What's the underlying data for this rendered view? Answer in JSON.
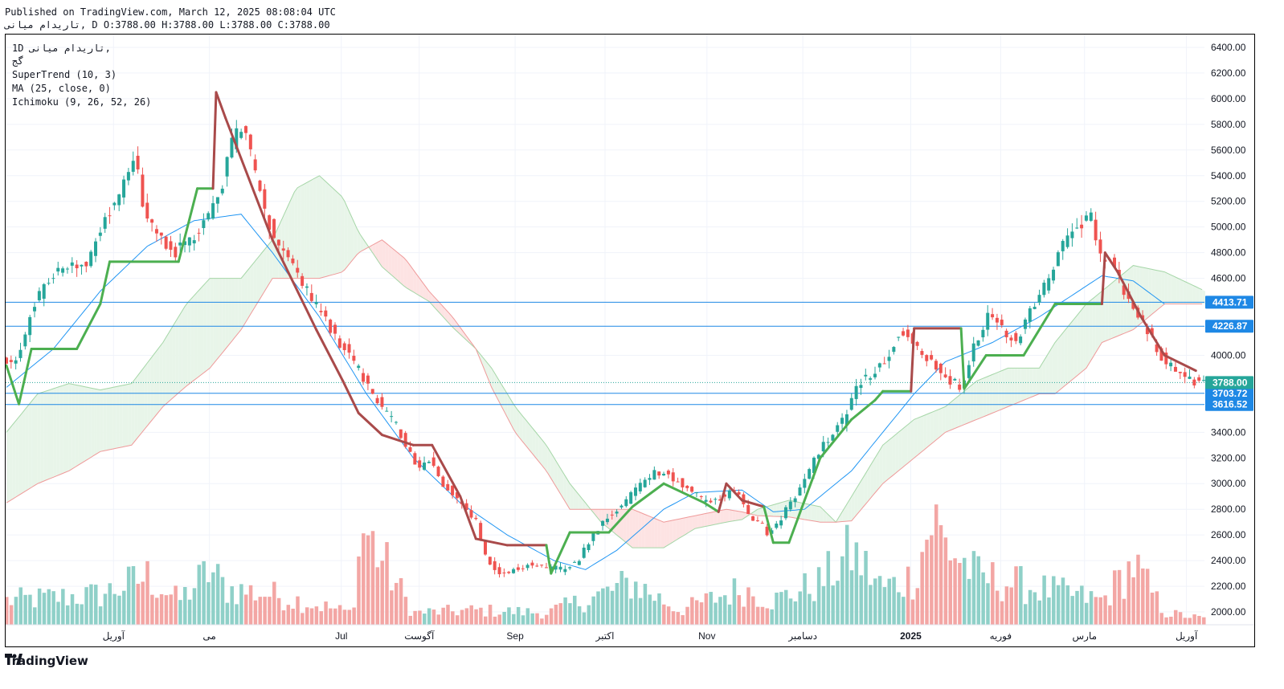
{
  "header": {
    "published": "Published on TradingView.com, March 12, 2025 08:08:04 UTC",
    "ohlc_line": "تاریدام میانی, D O:3788.00 H:3788.00 L:3788.00 C:3788.00"
  },
  "legend": {
    "symbol_interval": "1D  تاریدام میانی,",
    "line2": "گج",
    "supertrend": "SuperTrend (10, 3)",
    "ma": "MA (25, close, 0)",
    "ichimoku": "Ichimoku (9, 26, 52, 26)"
  },
  "footer": {
    "brand": "TradingView"
  },
  "colors": {
    "up": "#26a69a",
    "down": "#ef5350",
    "vol_up": "#8fd0c8",
    "vol_down": "#f3a6a4",
    "supertrend_up": "#4caf50",
    "supertrend_down": "#a94a4a",
    "ma": "#2196f3",
    "level": "#1e88e5",
    "cloud_green": "#e8f5e9",
    "cloud_red": "#fde3e3"
  },
  "chart_data": {
    "type": "candlestick",
    "y_range": [
      1900,
      6500
    ],
    "y_ticks": [
      {
        "value": 6400,
        "label": "6400.00"
      },
      {
        "value": 6200,
        "label": "6200.00"
      },
      {
        "value": 6000,
        "label": "6000.00"
      },
      {
        "value": 5800,
        "label": "5800.00"
      },
      {
        "value": 5600,
        "label": "5600.00"
      },
      {
        "value": 5400,
        "label": "5400.00"
      },
      {
        "value": 5200,
        "label": "5200.00"
      },
      {
        "value": 5000,
        "label": "5000.00"
      },
      {
        "value": 4800,
        "label": "4800.00"
      },
      {
        "value": 4600,
        "label": "4600.00"
      },
      {
        "value": 4000,
        "label": "4000.00"
      },
      {
        "value": 3400,
        "label": "3400.00"
      },
      {
        "value": 3200,
        "label": "3200.00"
      },
      {
        "value": 3000,
        "label": "3000.00"
      },
      {
        "value": 2800,
        "label": "2800.00"
      },
      {
        "value": 2600,
        "label": "2600.00"
      },
      {
        "value": 2400,
        "label": "2400.00"
      },
      {
        "value": 2200,
        "label": "2200.00"
      },
      {
        "value": 2000,
        "label": "2000.00"
      }
    ],
    "price_levels": [
      {
        "value": 4413.71,
        "label": "4413.71"
      },
      {
        "value": 4226.87,
        "label": "4226.87"
      },
      {
        "value": 3703.72,
        "label": "3703.72"
      },
      {
        "value": 3616.52,
        "label": "3616.52"
      }
    ],
    "last_price": {
      "value": 3788.0,
      "label": "3788.00"
    },
    "x_labels": [
      {
        "t": 0.09,
        "label": "آوریل"
      },
      {
        "t": 0.17,
        "label": "می"
      },
      {
        "t": 0.28,
        "label": "Jul"
      },
      {
        "t": 0.345,
        "label": "آگوست"
      },
      {
        "t": 0.425,
        "label": "Sep"
      },
      {
        "t": 0.5,
        "label": "اکتبر"
      },
      {
        "t": 0.585,
        "label": "Nov"
      },
      {
        "t": 0.665,
        "label": "دسامبر"
      },
      {
        "t": 0.755,
        "label": "2025"
      },
      {
        "t": 0.83,
        "label": "فوریه"
      },
      {
        "t": 0.9,
        "label": "مارس"
      },
      {
        "t": 0.985,
        "label": "آوریل"
      }
    ],
    "price_keypoints": [
      [
        0,
        4000
      ],
      [
        8,
        3900
      ],
      [
        20,
        4400
      ],
      [
        30,
        4600
      ],
      [
        40,
        4700
      ],
      [
        55,
        4700
      ],
      [
        63,
        5000
      ],
      [
        68,
        5100
      ],
      [
        78,
        5350
      ],
      [
        85,
        5550
      ],
      [
        90,
        5200
      ],
      [
        95,
        5000
      ],
      [
        102,
        4900
      ],
      [
        110,
        4800
      ],
      [
        122,
        4900
      ],
      [
        136,
        5200
      ],
      [
        140,
        5300
      ],
      [
        148,
        5700
      ],
      [
        155,
        5800
      ],
      [
        160,
        5500
      ],
      [
        168,
        5100
      ],
      [
        175,
        4900
      ],
      [
        190,
        4600
      ],
      [
        200,
        4400
      ],
      [
        210,
        4200
      ],
      [
        222,
        4000
      ],
      [
        232,
        3800
      ],
      [
        242,
        3600
      ],
      [
        250,
        3500
      ],
      [
        258,
        3300
      ],
      [
        266,
        3100
      ],
      [
        274,
        3200
      ],
      [
        282,
        3000
      ],
      [
        290,
        2900
      ],
      [
        297,
        2800
      ],
      [
        303,
        2700
      ],
      [
        310,
        2400
      ],
      [
        318,
        2300
      ],
      [
        328,
        2330
      ],
      [
        338,
        2380
      ],
      [
        348,
        2350
      ],
      [
        358,
        2330
      ],
      [
        368,
        2400
      ],
      [
        378,
        2600
      ],
      [
        388,
        2750
      ],
      [
        398,
        2850
      ],
      [
        408,
        3000
      ],
      [
        418,
        3100
      ],
      [
        428,
        3050
      ],
      [
        440,
        2950
      ],
      [
        450,
        2850
      ],
      [
        460,
        2900
      ],
      [
        470,
        2950
      ],
      [
        476,
        2750
      ],
      [
        484,
        2700
      ],
      [
        490,
        2600
      ],
      [
        496,
        2700
      ],
      [
        504,
        2850
      ],
      [
        512,
        3000
      ],
      [
        520,
        3200
      ],
      [
        528,
        3350
      ],
      [
        538,
        3500
      ],
      [
        548,
        3800
      ],
      [
        556,
        3850
      ],
      [
        566,
        4000
      ],
      [
        574,
        4200
      ],
      [
        582,
        4100
      ],
      [
        590,
        4000
      ],
      [
        598,
        3900
      ],
      [
        606,
        3800
      ],
      [
        614,
        3750
      ],
      [
        622,
        4100
      ],
      [
        630,
        4300
      ],
      [
        640,
        4200
      ],
      [
        648,
        4100
      ],
      [
        656,
        4300
      ],
      [
        664,
        4500
      ],
      [
        672,
        4700
      ],
      [
        680,
        4900
      ],
      [
        688,
        5000
      ],
      [
        696,
        5100
      ],
      [
        700,
        4800
      ],
      [
        706,
        4750
      ],
      [
        712,
        4650
      ],
      [
        718,
        4450
      ],
      [
        724,
        4350
      ],
      [
        732,
        4200
      ],
      [
        740,
        4000
      ],
      [
        750,
        3880
      ],
      [
        760,
        3800
      ],
      [
        766,
        3788
      ]
    ],
    "volume_keypoints": [
      [
        0,
        0.2
      ],
      [
        60,
        0.25
      ],
      [
        90,
        0.4
      ],
      [
        110,
        0.2
      ],
      [
        130,
        0.45
      ],
      [
        140,
        0.3
      ],
      [
        170,
        0.25
      ],
      [
        220,
        0.1
      ],
      [
        228,
        0.8
      ],
      [
        260,
        0.1
      ],
      [
        300,
        0.12
      ],
      [
        345,
        0.1
      ],
      [
        380,
        0.25
      ],
      [
        400,
        0.35
      ],
      [
        430,
        0.12
      ],
      [
        470,
        0.3
      ],
      [
        490,
        0.2
      ],
      [
        520,
        0.35
      ],
      [
        540,
        0.6
      ],
      [
        560,
        0.3
      ],
      [
        580,
        0.4
      ],
      [
        592,
        0.9
      ],
      [
        598,
        0.7
      ],
      [
        620,
        0.4
      ],
      [
        660,
        0.3
      ],
      [
        700,
        0.2
      ],
      [
        720,
        0.5
      ],
      [
        740,
        0.1
      ],
      [
        766,
        0.05
      ]
    ],
    "ma_keypoints": [
      [
        0,
        3750
      ],
      [
        30,
        4050
      ],
      [
        60,
        4500
      ],
      [
        90,
        4850
      ],
      [
        120,
        5050
      ],
      [
        150,
        5100
      ],
      [
        170,
        4800
      ],
      [
        200,
        4300
      ],
      [
        230,
        3700
      ],
      [
        260,
        3200
      ],
      [
        290,
        2850
      ],
      [
        320,
        2600
      ],
      [
        350,
        2400
      ],
      [
        370,
        2330
      ],
      [
        390,
        2480
      ],
      [
        420,
        2800
      ],
      [
        440,
        2930
      ],
      [
        470,
        2950
      ],
      [
        490,
        2780
      ],
      [
        510,
        2800
      ],
      [
        540,
        3100
      ],
      [
        560,
        3400
      ],
      [
        580,
        3700
      ],
      [
        600,
        3950
      ],
      [
        630,
        4100
      ],
      [
        660,
        4300
      ],
      [
        700,
        4620
      ],
      [
        720,
        4580
      ],
      [
        740,
        4400
      ]
    ],
    "supertrend_keypoints": [
      [
        0,
        3920,
        "up"
      ],
      [
        8,
        3620,
        "up"
      ],
      [
        16,
        4050,
        "up"
      ],
      [
        45,
        4050,
        "up"
      ],
      [
        60,
        4400,
        "up"
      ],
      [
        66,
        4730,
        "up"
      ],
      [
        110,
        4730,
        "up"
      ],
      [
        122,
        5300,
        "up"
      ],
      [
        132,
        5300,
        "up"
      ],
      [
        134,
        6050,
        "down"
      ],
      [
        140,
        5850,
        "down"
      ],
      [
        170,
        4900,
        "down"
      ],
      [
        198,
        4200,
        "down"
      ],
      [
        215,
        3800,
        "down"
      ],
      [
        225,
        3550,
        "down"
      ],
      [
        240,
        3380,
        "down"
      ],
      [
        260,
        3300,
        "down"
      ],
      [
        272,
        3300,
        "down"
      ],
      [
        290,
        2900,
        "down"
      ],
      [
        300,
        2570,
        "down"
      ],
      [
        320,
        2520,
        "down"
      ],
      [
        345,
        2520,
        "down"
      ],
      [
        348,
        2300,
        "up"
      ],
      [
        360,
        2620,
        "up"
      ],
      [
        385,
        2620,
        "up"
      ],
      [
        400,
        2820,
        "up"
      ],
      [
        420,
        3000,
        "up"
      ],
      [
        446,
        2850,
        "up"
      ],
      [
        455,
        2780,
        "up"
      ],
      [
        460,
        3000,
        "down"
      ],
      [
        470,
        2870,
        "down"
      ],
      [
        484,
        2820,
        "down"
      ],
      [
        490,
        2540,
        "up"
      ],
      [
        500,
        2540,
        "up"
      ],
      [
        520,
        3200,
        "up"
      ],
      [
        540,
        3500,
        "up"
      ],
      [
        555,
        3650,
        "up"
      ],
      [
        560,
        3720,
        "up"
      ],
      [
        578,
        3720,
        "up"
      ],
      [
        580,
        4210,
        "down"
      ],
      [
        610,
        4210,
        "down"
      ],
      [
        612,
        3740,
        "up"
      ],
      [
        626,
        4000,
        "up"
      ],
      [
        650,
        4000,
        "up"
      ],
      [
        670,
        4400,
        "up"
      ],
      [
        700,
        4400,
        "up"
      ],
      [
        702,
        4800,
        "down"
      ],
      [
        710,
        4650,
        "down"
      ],
      [
        725,
        4300,
        "down"
      ],
      [
        740,
        4000,
        "down"
      ],
      [
        760,
        3880,
        "down"
      ]
    ],
    "cloud_keypoints": [
      [
        0,
        3400,
        2850
      ],
      [
        20,
        3700,
        3000
      ],
      [
        40,
        3780,
        3100
      ],
      [
        60,
        3730,
        3250
      ],
      [
        80,
        3780,
        3300
      ],
      [
        100,
        4100,
        3600
      ],
      [
        115,
        4400,
        3760
      ],
      [
        130,
        4600,
        3900
      ],
      [
        150,
        4600,
        4200
      ],
      [
        170,
        4900,
        4600
      ],
      [
        185,
        5300,
        4600
      ],
      [
        200,
        5400,
        4600
      ],
      [
        215,
        5230,
        4650
      ],
      [
        225,
        4960,
        4800
      ],
      [
        240,
        4690,
        4900
      ],
      [
        255,
        4530,
        4750
      ],
      [
        270,
        4420,
        4500
      ],
      [
        285,
        4220,
        4300
      ],
      [
        300,
        4050,
        4050
      ],
      [
        310,
        3900,
        3750
      ],
      [
        325,
        3600,
        3400
      ],
      [
        345,
        3300,
        3100
      ],
      [
        360,
        3000,
        2800
      ],
      [
        380,
        2700,
        2800
      ],
      [
        400,
        2500,
        2800
      ],
      [
        420,
        2500,
        2700
      ],
      [
        440,
        2650,
        2750
      ],
      [
        460,
        2700,
        2800
      ],
      [
        470,
        2720,
        2780
      ],
      [
        480,
        2800,
        2750
      ],
      [
        500,
        2870,
        2740
      ],
      [
        520,
        2820,
        2700
      ],
      [
        530,
        2700,
        2700
      ],
      [
        540,
        2900,
        2710
      ],
      [
        560,
        3300,
        3000
      ],
      [
        580,
        3500,
        3200
      ],
      [
        600,
        3600,
        3400
      ],
      [
        620,
        3800,
        3500
      ],
      [
        640,
        3900,
        3600
      ],
      [
        660,
        3900,
        3700
      ],
      [
        670,
        4100,
        3700
      ],
      [
        690,
        4400,
        3900
      ],
      [
        700,
        4500,
        4100
      ],
      [
        720,
        4700,
        4200
      ],
      [
        740,
        4650,
        4400
      ],
      [
        766,
        4500,
        4400
      ]
    ]
  }
}
